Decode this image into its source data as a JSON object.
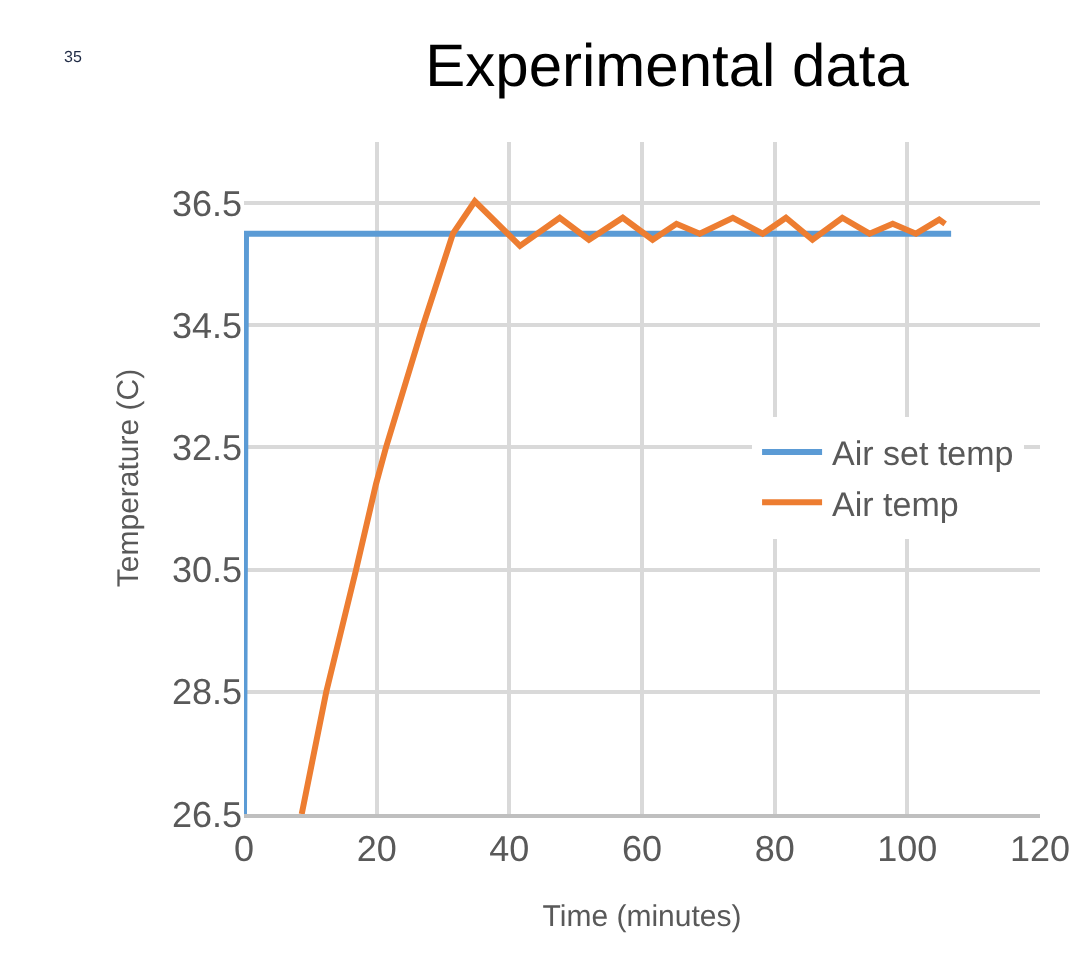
{
  "chart_data": {
    "type": "line",
    "title": "Experimental data",
    "xlabel": "Time (minutes)",
    "ylabel": "Temperature (C)",
    "annotations": [
      "35"
    ],
    "xlim": [
      0,
      120
    ],
    "xticks": [
      0,
      20,
      40,
      60,
      80,
      100,
      120
    ],
    "ylim": [
      26.5,
      37.5
    ],
    "yticks": [
      26.5,
      28.5,
      30.5,
      32.5,
      34.5,
      36.5
    ],
    "grid": true,
    "legend": "right",
    "marker": "none",
    "line_style": "solid",
    "series": [
      {
        "name": "Air set temp",
        "color": "#5b9bd5",
        "x": [
          0,
          0.3,
          106.6
        ],
        "values": [
          26.5,
          36,
          36
        ]
      },
      {
        "name": "Air temp",
        "color": "#ed7d31",
        "x": [
          8.7,
          12.4,
          16.9,
          19.9,
          21.4,
          27,
          31.5,
          34.8,
          41.6,
          47.6,
          52,
          57.1,
          61.6,
          65.2,
          68.7,
          73.7,
          78.2,
          81.7,
          85.7,
          90.2,
          94.3,
          97.8,
          101.3,
          104.8,
          105.7
        ],
        "values": [
          26.5,
          28.5,
          30.5,
          31.9,
          32.5,
          34.5,
          36,
          36.53,
          35.8,
          36.26,
          35.9,
          36.26,
          35.9,
          36.16,
          36,
          36.26,
          36,
          36.26,
          35.9,
          36.26,
          36,
          36.16,
          36,
          36.23,
          36.16
        ]
      }
    ]
  }
}
